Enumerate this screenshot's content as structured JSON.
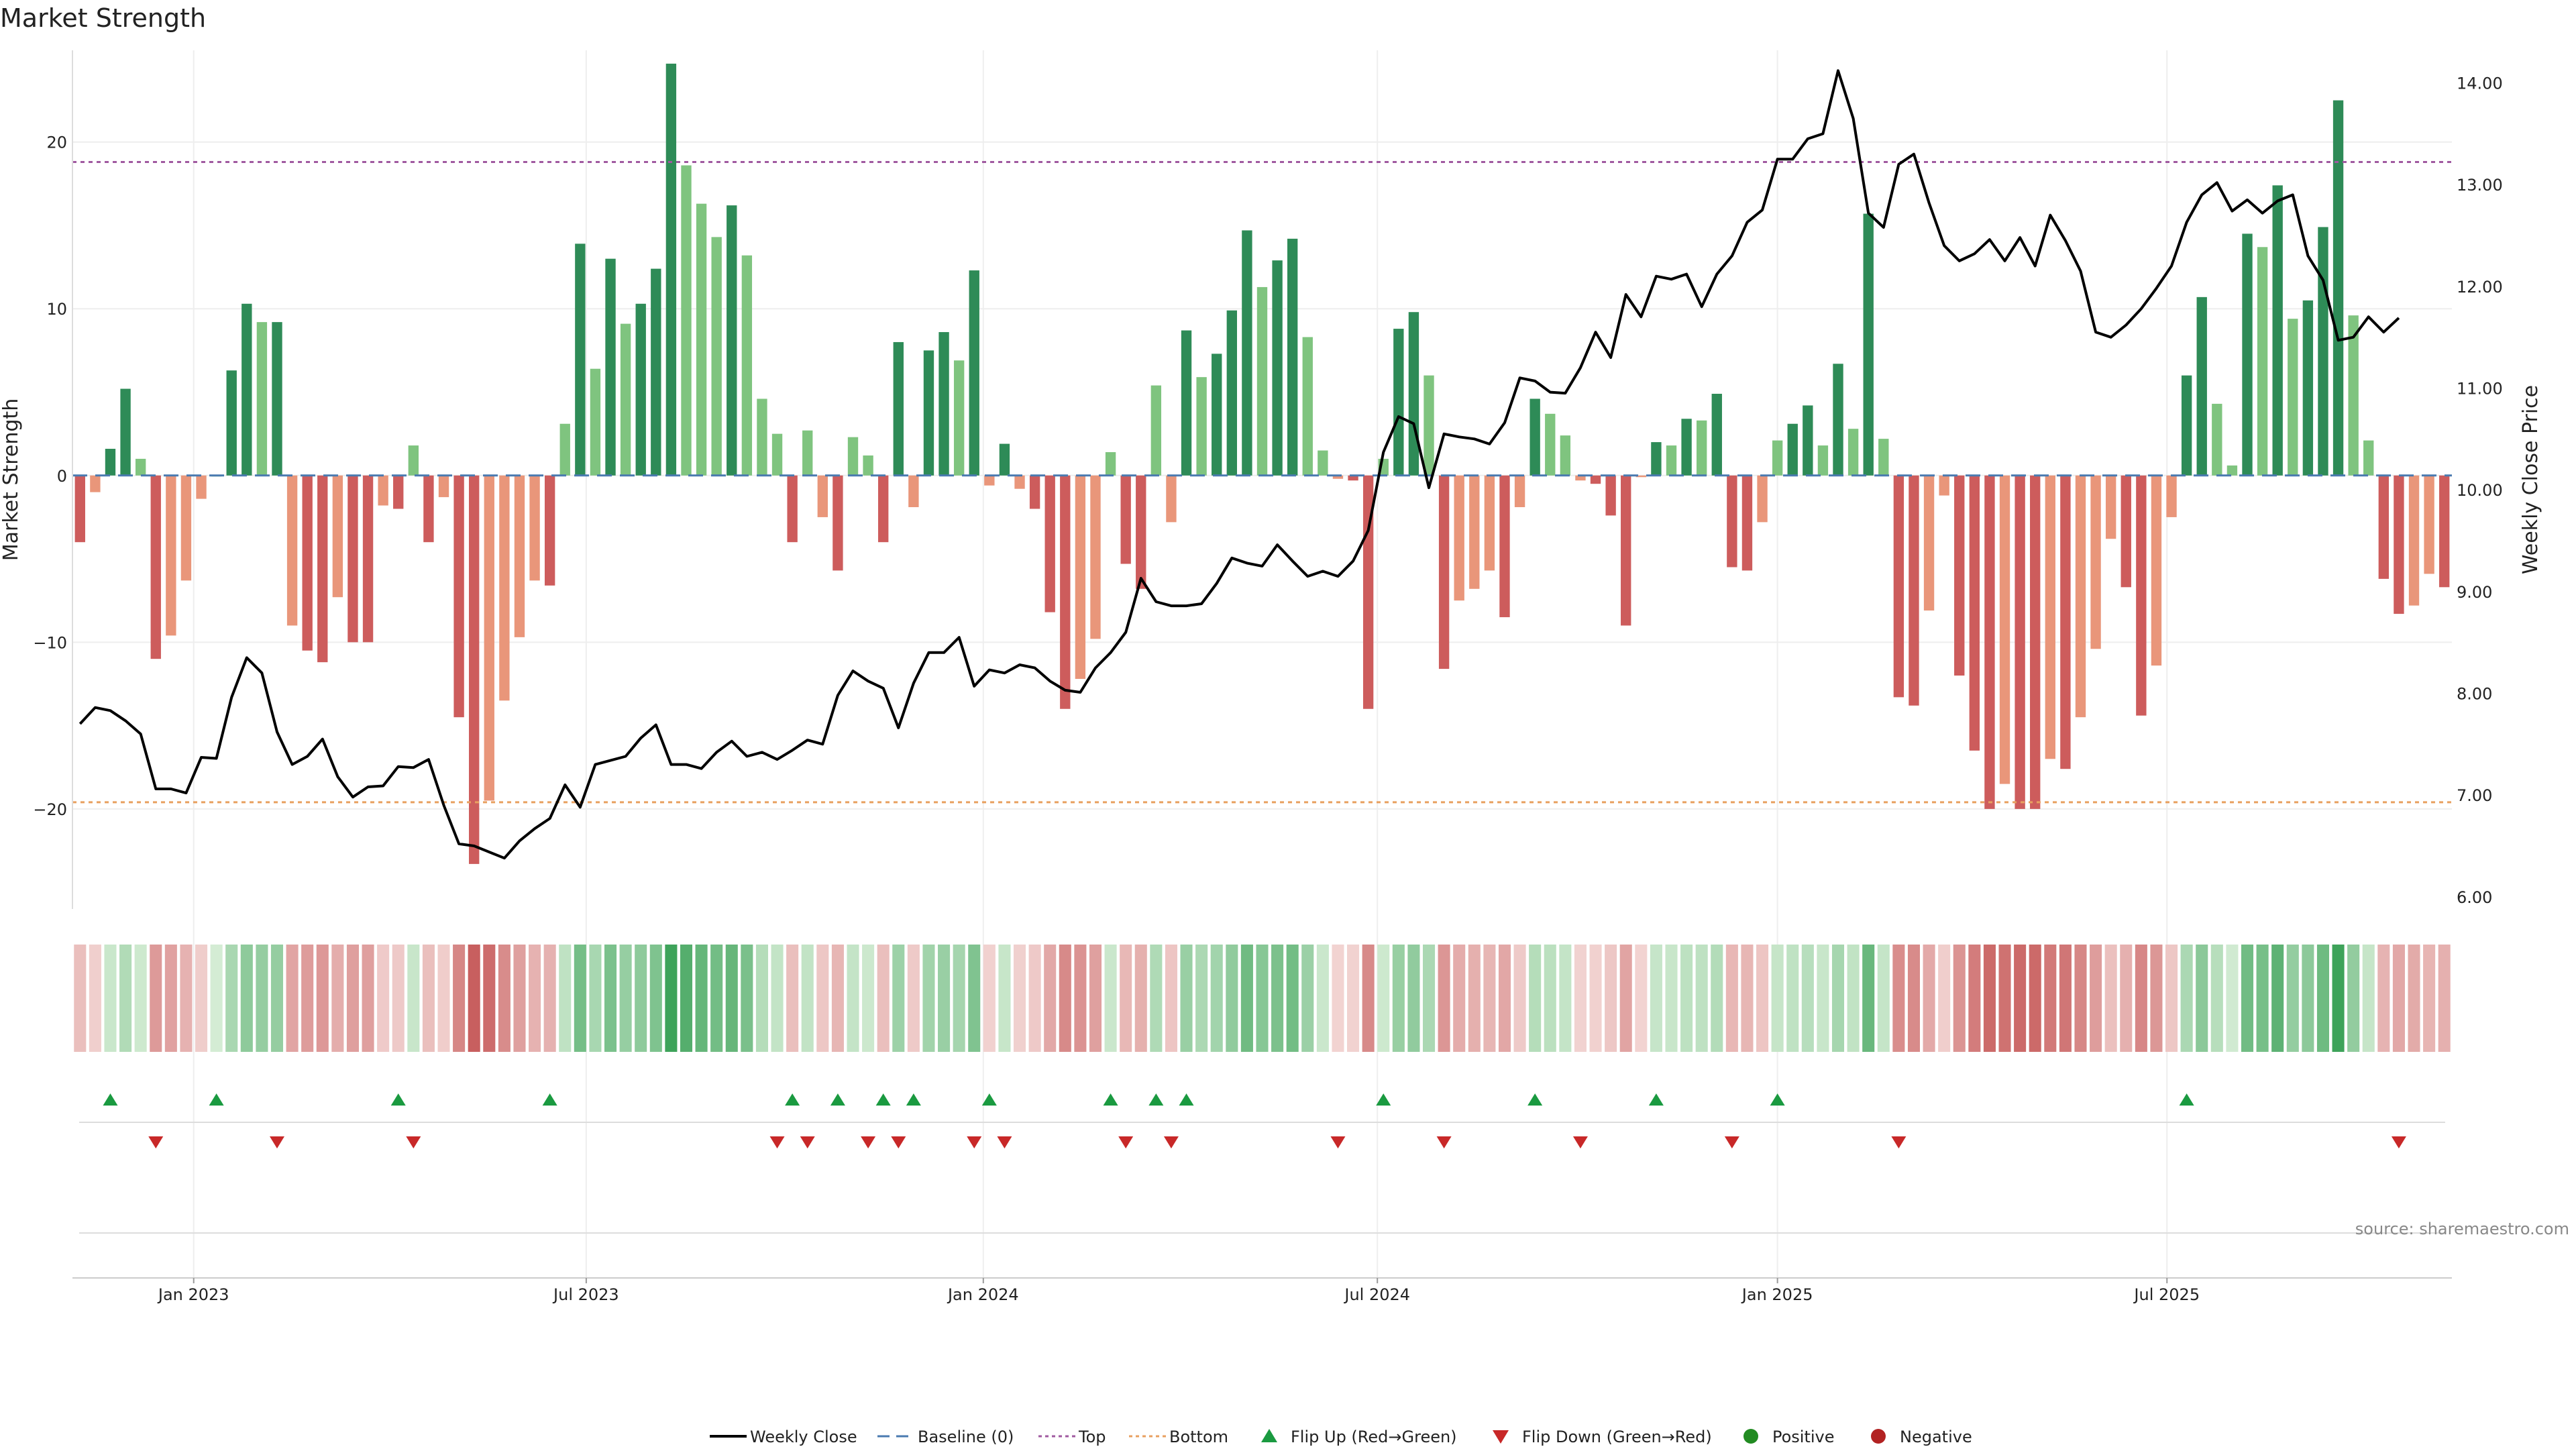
{
  "chart_data": {
    "type": "bar",
    "title": "Market Strength",
    "ylabel": "Market Strength",
    "y2label": "Weekly Close Price",
    "ylim": [
      -26,
      25.5
    ],
    "y2lim": [
      5.88,
      14.32
    ],
    "yticks": [
      -20,
      -10,
      0,
      10,
      20
    ],
    "y2ticks": [
      "6.00",
      "7.00",
      "8.00",
      "9.00",
      "10.00",
      "11.00",
      "12.00",
      "13.00",
      "14.00"
    ],
    "x_start_week": "2022-11-11",
    "weeks": 157,
    "x_ticks": [
      {
        "label": "Jan 2023",
        "week": 7.5
      },
      {
        "label": "Jul 2023",
        "week": 33.4
      },
      {
        "label": "Jan 2024",
        "week": 59.6
      },
      {
        "label": "Jul 2024",
        "week": 85.6
      },
      {
        "label": "Jan 2025",
        "week": 112
      },
      {
        "label": "Jul 2025",
        "week": 137.7
      }
    ],
    "top_threshold": 18.8,
    "bottom_threshold": -19.6,
    "grid": true,
    "legend_position": "bottom-center",
    "series": [
      {
        "name": "Market Strength",
        "type": "bar",
        "values": [
          -4,
          -1,
          1.6,
          5.2,
          1,
          -11,
          -9.6,
          -6.3,
          -1.4,
          0,
          6.3,
          10.3,
          9.2,
          9.2,
          -9,
          -10.5,
          -11.2,
          -7.3,
          -10,
          -10,
          -1.8,
          -2,
          1.8,
          -4,
          -1.3,
          -14.5,
          -23.3,
          -19.5,
          -13.5,
          -9.7,
          -6.3,
          -6.6,
          3.1,
          13.9,
          6.4,
          13,
          9.1,
          10.3,
          12.4,
          24.7,
          18.6,
          16.3,
          14.3,
          16.2,
          13.2,
          4.6,
          2.5,
          -4,
          2.7,
          -2.5,
          -5.7,
          2.3,
          1.2,
          -4,
          8,
          -1.9,
          7.5,
          8.6,
          6.9,
          12.3,
          -0.6,
          1.9,
          -0.8,
          -2,
          -8.2,
          -14,
          -12.2,
          -9.8,
          1.4,
          -5.3,
          -6.8,
          5.4,
          -2.8,
          8.7,
          5.9,
          7.3,
          9.9,
          14.7,
          11.3,
          12.9,
          14.2,
          8.3,
          1.5,
          -0.2,
          -0.3,
          -14,
          1,
          8.8,
          9.8,
          6,
          -11.6,
          -7.5,
          -6.8,
          -5.7,
          -8.5,
          -1.9,
          4.6,
          3.7,
          2.4,
          -0.3,
          -0.5,
          -2.4,
          -9,
          -0.1,
          2,
          1.8,
          3.4,
          3.3,
          4.9,
          -5.5,
          -5.7,
          -2.8,
          2.1,
          3.1,
          4.2,
          1.8,
          6.7,
          2.8,
          15.7,
          2.2,
          -13.3,
          -13.8,
          -8.1,
          -1.2,
          -12,
          -16.5,
          -20,
          -18.5,
          -20,
          -20,
          -17,
          -17.6,
          -14.5,
          -10.4,
          -3.8,
          -6.7,
          -14.4,
          -11.4,
          -2.5,
          6,
          10.7,
          4.3,
          0.6,
          14.5,
          13.7,
          17.4,
          9.4,
          10.5,
          14.9,
          22.5,
          9.6,
          2.1,
          -6.2,
          -8.3,
          -7.8,
          -5.9,
          -6.7
        ]
      },
      {
        "name": "Weekly Close",
        "type": "line",
        "values": [
          7.7,
          7.86,
          7.83,
          7.73,
          7.6,
          7.06,
          7.06,
          7.02,
          7.37,
          7.36,
          7.96,
          8.35,
          8.2,
          7.62,
          7.3,
          7.38,
          7.55,
          7.18,
          6.98,
          7.08,
          7.09,
          7.28,
          7.27,
          7.35,
          6.9,
          6.52,
          6.5,
          6.44,
          6.38,
          6.55,
          6.67,
          6.77,
          7.1,
          6.88,
          7.3,
          7.34,
          7.38,
          7.56,
          7.69,
          7.3,
          7.3,
          7.26,
          7.42,
          7.53,
          7.38,
          7.42,
          7.35,
          7.44,
          7.54,
          7.5,
          7.98,
          8.22,
          8.12,
          8.05,
          7.66,
          8.1,
          8.4,
          8.4,
          8.55,
          8.07,
          8.23,
          8.2,
          8.28,
          8.25,
          8.12,
          8.03,
          8.01,
          8.25,
          8.4,
          8.6,
          9.13,
          8.9,
          8.86,
          8.86,
          8.88,
          9.08,
          9.33,
          9.28,
          9.25,
          9.46,
          9.3,
          9.15,
          9.2,
          9.15,
          9.3,
          9.6,
          10.37,
          10.72,
          10.65,
          10.02,
          10.55,
          10.52,
          10.5,
          10.45,
          10.66,
          11.1,
          11.07,
          10.96,
          10.95,
          11.2,
          11.55,
          11.3,
          11.92,
          11.7,
          12.1,
          12.07,
          12.12,
          11.8,
          12.12,
          12.3,
          12.63,
          12.75,
          13.25,
          13.25,
          13.45,
          13.5,
          14.12,
          13.65,
          12.72,
          12.58,
          13.2,
          13.3,
          12.82,
          12.4,
          12.25,
          12.32,
          12.46,
          12.25,
          12.48,
          12.2,
          12.7,
          12.45,
          12.15,
          11.55,
          11.5,
          11.62,
          11.78,
          11.98,
          12.2,
          12.63,
          12.9,
          13.02,
          12.74,
          12.85,
          12.72,
          12.84,
          12.9,
          12.3,
          12.06,
          11.47,
          11.5,
          11.7,
          11.55,
          11.69
        ]
      },
      {
        "name": "Baseline (0)",
        "type": "line",
        "values": [
          0
        ]
      },
      {
        "name": "Top",
        "type": "line",
        "values": [
          18.8
        ]
      },
      {
        "name": "Bottom",
        "type": "line",
        "values": [
          -19.6
        ]
      },
      {
        "name": "Flip Up (Red→Green)",
        "type": "scatter",
        "weeks": [
          2,
          9,
          21,
          31,
          47,
          50,
          53,
          55,
          60,
          68,
          71,
          73,
          86,
          96,
          104,
          112,
          139
        ]
      },
      {
        "name": "Flip Down (Green→Red)",
        "type": "scatter",
        "weeks": [
          5,
          13,
          22,
          46,
          48,
          52,
          54,
          59,
          61,
          69,
          72,
          83,
          90,
          99,
          109,
          120,
          153
        ]
      }
    ],
    "legend": [
      {
        "label": "Weekly Close",
        "kind": "line",
        "color": "#000000"
      },
      {
        "label": "Baseline (0)",
        "kind": "dash",
        "color": "#4a7ab0"
      },
      {
        "label": "Top",
        "kind": "dot",
        "color": "#a05aa0"
      },
      {
        "label": "Bottom",
        "kind": "dot",
        "color": "#e8a060"
      },
      {
        "label": "Flip Up (Red→Green)",
        "kind": "tri-up",
        "color": "#1a9a40"
      },
      {
        "label": "Flip Down (Green→Red)",
        "kind": "tri-down",
        "color": "#c82828"
      },
      {
        "label": "Positive",
        "kind": "dot-marker",
        "color": "#228B22"
      },
      {
        "label": "Negative",
        "kind": "dot-marker",
        "color": "#b22222"
      }
    ],
    "source": "source: sharemaestro.com"
  },
  "colors": {
    "pos_strong": "#2e8b57",
    "pos_light": "#7fc47f",
    "neg_strong": "#cd5c5c",
    "neg_light": "#e9967a",
    "line": "#000000",
    "baseline": "#4a7ab0",
    "top": "#a05aa0",
    "bottom": "#e8a060",
    "grid": "#eeeeee",
    "flip_up": "#1a9a40",
    "flip_down": "#c82828"
  }
}
